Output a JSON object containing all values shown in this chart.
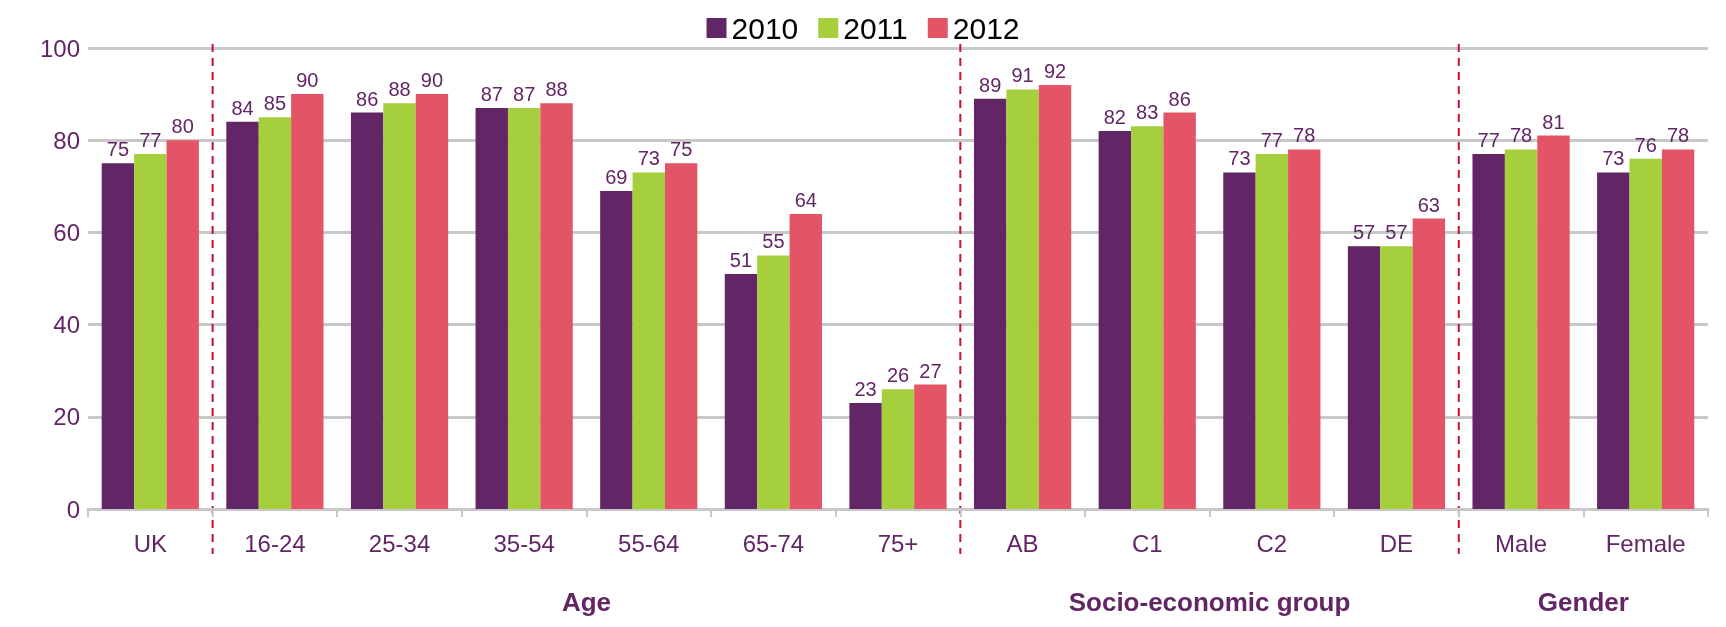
{
  "chart_data": {
    "type": "bar",
    "categories": [
      "UK",
      "16-24",
      "25-34",
      "35-54",
      "55-64",
      "65-74",
      "75+",
      "AB",
      "C1",
      "C2",
      "DE",
      "Male",
      "Female"
    ],
    "series": [
      {
        "name": "2010",
        "color": "#622565",
        "values": [
          75,
          84,
          86,
          87,
          69,
          51,
          23,
          89,
          82,
          73,
          57,
          77,
          73
        ]
      },
      {
        "name": "2011",
        "color": "#a5cf3c",
        "values": [
          77,
          85,
          88,
          87,
          73,
          55,
          26,
          91,
          83,
          77,
          57,
          78,
          76
        ]
      },
      {
        "name": "2012",
        "color": "#e35566",
        "values": [
          80,
          90,
          90,
          88,
          75,
          64,
          27,
          92,
          86,
          78,
          63,
          81,
          78
        ]
      }
    ],
    "ylim": [
      0,
      100
    ],
    "yticks": [
      0,
      20,
      40,
      60,
      80,
      100
    ],
    "grid": "y",
    "legend": "top",
    "data_labels": true,
    "annotations": [
      "Age",
      "Socio-economic group",
      "Gender"
    ]
  }
}
